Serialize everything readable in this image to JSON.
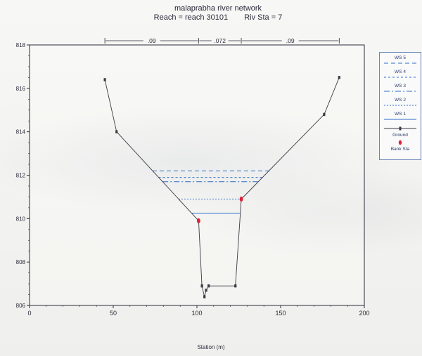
{
  "title": "malaprabha river network",
  "subtitle_reach": "Reach = reach 30101",
  "subtitle_sta": "Riv Sta = 7",
  "chart_data": {
    "type": "line",
    "xlabel": "Station (m)",
    "ylabel": "",
    "xlim": [
      0,
      200
    ],
    "ylim": [
      806,
      818
    ],
    "xticks": [
      "0",
      "50",
      "100",
      "150",
      "200"
    ],
    "yticks": [
      "806",
      "808",
      "810",
      "812",
      "814",
      "816",
      "818"
    ],
    "ground": {
      "name": "Ground",
      "x": [
        45,
        52,
        101,
        103,
        104.5,
        105.5,
        107,
        123,
        126.5,
        176,
        185
      ],
      "y": [
        816.4,
        814.0,
        809.9,
        806.9,
        806.4,
        806.7,
        806.9,
        806.9,
        810.9,
        814.8,
        816.5
      ]
    },
    "bank_sta": {
      "name": "Bank Sta",
      "x": [
        101,
        126.5
      ],
      "y": [
        809.9,
        810.9
      ]
    },
    "water_surfaces": [
      {
        "name": "WS 5",
        "elevation": 812.2
      },
      {
        "name": "WS 4",
        "elevation": 811.9
      },
      {
        "name": "WS 3",
        "elevation": 811.7
      },
      {
        "name": "WS 2",
        "elevation": 810.9
      },
      {
        "name": "WS 1",
        "elevation": 810.25
      }
    ],
    "manning": {
      "values": [
        ".09",
        ".072",
        ".09"
      ],
      "boundaries_x": [
        45,
        101,
        126.5,
        185
      ]
    },
    "legend_position": "right"
  },
  "colors": {
    "ground": "#3a3a44",
    "water": "#2f6cc8",
    "bank": "#e0203a",
    "axis": "#2a2a3a"
  }
}
